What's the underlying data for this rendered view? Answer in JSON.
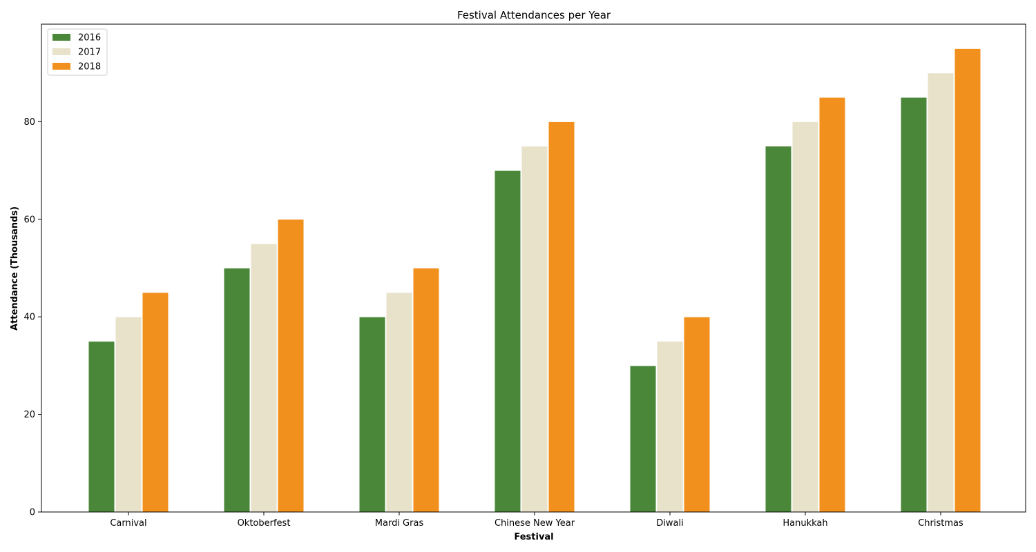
{
  "chart_data": {
    "type": "bar",
    "title": "Festival Attendances per Year",
    "xlabel": "Festival",
    "ylabel": "Attendance (Thousands)",
    "categories": [
      "Carnival",
      "Oktoberfest",
      "Mardi Gras",
      "Chinese New Year",
      "Diwali",
      "Hanukkah",
      "Christmas"
    ],
    "series": [
      {
        "name": "2016",
        "color": "#4a8739",
        "values": [
          35,
          50,
          40,
          70,
          30,
          75,
          85
        ]
      },
      {
        "name": "2017",
        "color": "#e7e2c9",
        "values": [
          40,
          55,
          45,
          75,
          35,
          80,
          90
        ]
      },
      {
        "name": "2018",
        "color": "#f2901e",
        "values": [
          45,
          60,
          50,
          80,
          40,
          85,
          95
        ]
      }
    ],
    "ylim": [
      0,
      100
    ],
    "yticks": [
      0,
      20,
      40,
      60,
      80
    ],
    "grid": false,
    "legend_position": "top-left"
  }
}
